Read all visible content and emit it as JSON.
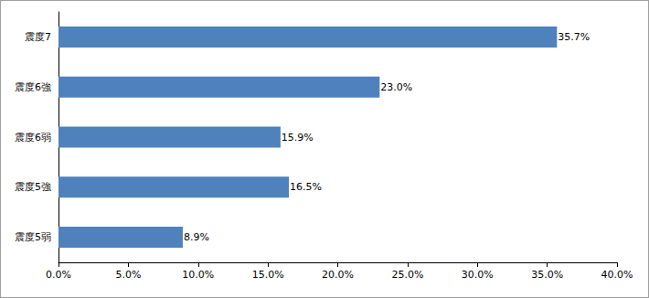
{
  "chart_data": {
    "type": "bar",
    "orientation": "horizontal",
    "categories": [
      "震度7",
      "震度6強",
      "震度6弱",
      "震度5強",
      "震度5弱"
    ],
    "values": [
      35.7,
      23.0,
      15.9,
      16.5,
      8.9
    ],
    "value_labels": [
      "35.7%",
      "23.0%",
      "15.9%",
      "16.5%",
      "8.9%"
    ],
    "data_labels": true,
    "color": "#4f81bd",
    "xlim": [
      0,
      40
    ],
    "xticks": [
      {
        "value": 0,
        "label": "0.0%"
      },
      {
        "value": 5,
        "label": "5.0%"
      },
      {
        "value": 10,
        "label": "10.0%"
      },
      {
        "value": 15,
        "label": "15.0%"
      },
      {
        "value": 20,
        "label": "20.0%"
      },
      {
        "value": 25,
        "label": "25.0%"
      },
      {
        "value": 30,
        "label": "30.0%"
      },
      {
        "value": 35,
        "label": "35.0%"
      },
      {
        "value": 40,
        "label": "40.0%"
      }
    ],
    "grid": false
  }
}
